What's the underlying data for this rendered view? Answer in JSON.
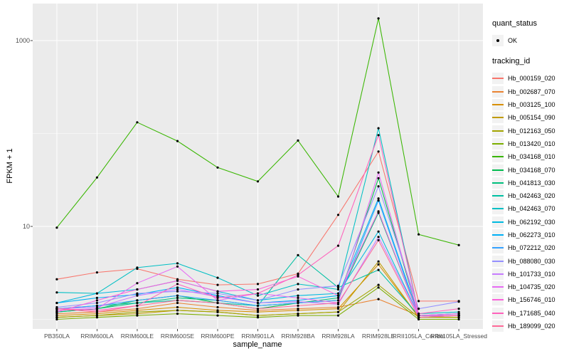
{
  "figure": {
    "background": "#FFFFFF",
    "panel_background": "#EBEBEB",
    "gridline_color": "#FFFFFF",
    "axis_text_color": "#4D4D4D",
    "point_color": "#000000"
  },
  "chart_data": {
    "type": "line",
    "title": "",
    "xlabel": "sample_name",
    "ylabel": "FPKM + 1",
    "y_scale": "log10",
    "values_are": "FPKM + 1",
    "y_axis_tick_labels": [
      "1000",
      "10"
    ],
    "y_gridlines_major": [
      10,
      1000
    ],
    "y_gridlines_minor": [
      1,
      100
    ],
    "ylim_log10": [
      -0.1,
      3.4
    ],
    "grid": true,
    "legend_position": "right",
    "categories": [
      "PB350LA",
      "RRIM600LA",
      "RRIM600LE",
      "RRIM600SE",
      "RRIM600PE",
      "RRIM901LA",
      "RRIM928BA",
      "RRIM928LA",
      "RRIM928LE",
      "RRII105LA_Control",
      "RRII105LA_Stressed"
    ],
    "series": [
      {
        "name": "Hb_000159_020",
        "color": "#F8766D",
        "values": [
          2.7,
          3.2,
          3.5,
          2.7,
          2.35,
          2.4,
          3.1,
          13.3,
          64,
          1.57,
          1.57
        ]
      },
      {
        "name": "Hb_002687_070",
        "color": "#EA8331",
        "values": [
          1.15,
          1.2,
          1.3,
          1.5,
          1.35,
          1.25,
          1.3,
          1.35,
          1.65,
          1.1,
          1.1
        ]
      },
      {
        "name": "Hb_003125_100",
        "color": "#D89000",
        "values": [
          1.1,
          1.15,
          1.25,
          1.35,
          1.25,
          1.2,
          1.25,
          1.3,
          3.9,
          1.05,
          1.1
        ]
      },
      {
        "name": "Hb_005154_090",
        "color": "#C09B00",
        "values": [
          1.05,
          1.1,
          1.15,
          1.25,
          1.2,
          1.1,
          1.15,
          1.2,
          4.2,
          1.05,
          1.05
        ]
      },
      {
        "name": "Hb_012163_050",
        "color": "#A3A500",
        "values": [
          1.05,
          1.1,
          1.2,
          1.25,
          1.2,
          1.1,
          1.15,
          1.2,
          2.35,
          1.05,
          1.05
        ]
      },
      {
        "name": "Hb_013420_010",
        "color": "#7CAE00",
        "values": [
          1.0,
          1.05,
          1.1,
          1.15,
          1.1,
          1.05,
          1.1,
          1.1,
          2.2,
          1.0,
          1.0
        ]
      },
      {
        "name": "Hb_034168_010",
        "color": "#39B600",
        "values": [
          9.7,
          33.6,
          132,
          83,
          43,
          30.5,
          84,
          21,
          1730,
          8.2,
          6.3
        ]
      },
      {
        "name": "Hb_034168_070",
        "color": "#00BB4E",
        "values": [
          1.2,
          1.3,
          1.6,
          1.8,
          1.5,
          1.3,
          1.5,
          1.6,
          33,
          1.1,
          1.15
        ]
      },
      {
        "name": "Hb_041813_030",
        "color": "#00BF7D",
        "values": [
          1.2,
          1.3,
          1.5,
          1.7,
          1.6,
          1.4,
          1.5,
          1.7,
          14,
          1.1,
          1.1
        ]
      },
      {
        "name": "Hb_042463_020",
        "color": "#00C1A3",
        "values": [
          1.3,
          1.4,
          1.5,
          1.6,
          1.5,
          1.4,
          4.9,
          2.2,
          3.4,
          1.1,
          1.1
        ]
      },
      {
        "name": "Hb_042463_070",
        "color": "#00BFC4",
        "values": [
          1.95,
          1.9,
          3.6,
          4.0,
          2.8,
          1.8,
          2.4,
          2.1,
          114,
          1.15,
          1.2
        ]
      },
      {
        "name": "Hb_062192_030",
        "color": "#00BAE0",
        "values": [
          1.5,
          1.9,
          2.1,
          2.6,
          2.0,
          1.6,
          1.8,
          1.9,
          8.8,
          1.1,
          1.15
        ]
      },
      {
        "name": "Hb_062273_010",
        "color": "#00B0F6",
        "values": [
          1.5,
          1.7,
          1.85,
          2.2,
          1.8,
          1.5,
          1.6,
          1.8,
          20,
          1.1,
          1.1
        ]
      },
      {
        "name": "Hb_072212_020",
        "color": "#35A2FF",
        "values": [
          1.3,
          1.4,
          1.6,
          1.8,
          1.6,
          1.4,
          1.5,
          1.6,
          19,
          1.05,
          1.1
        ]
      },
      {
        "name": "Hb_088080_030",
        "color": "#9590FF",
        "values": [
          1.35,
          1.5,
          1.9,
          2.0,
          1.9,
          1.6,
          2.1,
          2.3,
          27,
          1.3,
          1.55
        ]
      },
      {
        "name": "Hb_101733_010",
        "color": "#C77CFF",
        "values": [
          1.3,
          1.35,
          1.8,
          2.1,
          1.75,
          1.5,
          1.55,
          1.45,
          7.7,
          1.1,
          1.1
        ]
      },
      {
        "name": "Hb_104735_020",
        "color": "#E76BF3",
        "values": [
          1.25,
          1.3,
          2.45,
          3.7,
          1.6,
          1.9,
          1.7,
          1.5,
          38,
          1.1,
          1.15
        ]
      },
      {
        "name": "Hb_156746_010",
        "color": "#FA62DB",
        "values": [
          1.2,
          1.6,
          2.1,
          2.6,
          2.0,
          2.1,
          2.9,
          1.8,
          14.5,
          1.1,
          1.1
        ]
      },
      {
        "name": "Hb_171685_040",
        "color": "#FF62BC",
        "values": [
          1.3,
          1.25,
          1.4,
          2.4,
          1.7,
          1.9,
          3.0,
          6.2,
          96,
          1.15,
          1.3
        ]
      },
      {
        "name": "Hb_189099_020",
        "color": "#FF6A98",
        "values": [
          1.3,
          1.2,
          1.4,
          1.6,
          1.5,
          1.3,
          1.4,
          1.5,
          7.1,
          1.05,
          1.1
        ]
      }
    ],
    "legend": {
      "quant_status_title": "quant_status",
      "quant_status_items": [
        {
          "label": "OK",
          "marker": "point",
          "color": "#000000"
        }
      ],
      "tracking_id_title": "tracking_id"
    }
  }
}
